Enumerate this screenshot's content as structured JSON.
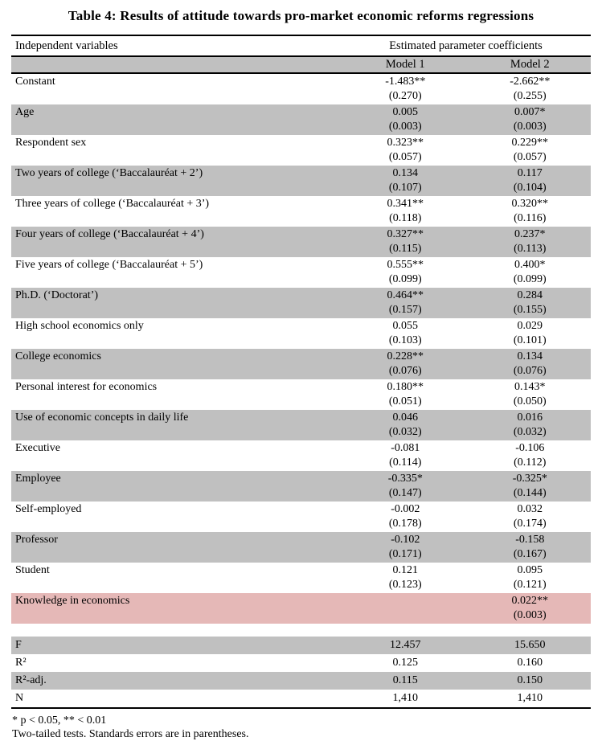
{
  "title": "Table 4: Results of attitude towards pro-market economic reforms regressions",
  "colors": {
    "row_gray": "#c0c0c0",
    "row_pink": "#e5b8b7",
    "border": "#000000",
    "text": "#000000"
  },
  "table": {
    "col1_header": "Independent variables",
    "col2_header": "Estimated parameter coefficients",
    "model_headers": {
      "model1": "Model 1",
      "model2": "Model 2"
    },
    "rows": [
      {
        "label": "Constant",
        "m1": "-1.483**",
        "m1_se": "(0.270)",
        "m2": "-2.662**",
        "m2_se": "(0.255)",
        "shade": "white"
      },
      {
        "label": "Age",
        "m1": "0.005",
        "m1_se": "(0.003)",
        "m2": "0.007*",
        "m2_se": "(0.003)",
        "shade": "gray"
      },
      {
        "label": "Respondent sex",
        "m1": "0.323**",
        "m1_se": "(0.057)",
        "m2": "0.229**",
        "m2_se": "(0.057)",
        "shade": "white"
      },
      {
        "label": "Two years of college (‘Baccalauréat + 2’)",
        "m1": "0.134",
        "m1_se": "(0.107)",
        "m2": "0.117",
        "m2_se": "(0.104)",
        "shade": "gray"
      },
      {
        "label": "Three years of college (‘Baccalauréat + 3’)",
        "m1": "0.341**",
        "m1_se": "(0.118)",
        "m2": "0.320**",
        "m2_se": "(0.116)",
        "shade": "white"
      },
      {
        "label": "Four years of college (‘Baccalauréat + 4’)",
        "m1": "0.327**",
        "m1_se": "(0.115)",
        "m2": "0.237*",
        "m2_se": "(0.113)",
        "shade": "gray"
      },
      {
        "label": "Five years of college (‘Baccalauréat + 5’)",
        "m1": "0.555**",
        "m1_se": "(0.099)",
        "m2": "0.400*",
        "m2_se": "(0.099)",
        "shade": "white"
      },
      {
        "label": "Ph.D. (‘Doctorat’)",
        "m1": "0.464**",
        "m1_se": "(0.157)",
        "m2": "0.284",
        "m2_se": "(0.155)",
        "shade": "gray"
      },
      {
        "label": "High school economics only",
        "m1": "0.055",
        "m1_se": "(0.103)",
        "m2": "0.029",
        "m2_se": "(0.101)",
        "shade": "white"
      },
      {
        "label": "College economics",
        "m1": "0.228**",
        "m1_se": "(0.076)",
        "m2": "0.134",
        "m2_se": "(0.076)",
        "shade": "gray"
      },
      {
        "label": "Personal interest for economics",
        "m1": "0.180**",
        "m1_se": "(0.051)",
        "m2": "0.143*",
        "m2_se": "(0.050)",
        "shade": "white"
      },
      {
        "label": "Use of economic concepts in daily life",
        "m1": "0.046",
        "m1_se": "(0.032)",
        "m2": "0.016",
        "m2_se": "(0.032)",
        "shade": "gray"
      },
      {
        "label": "Executive",
        "m1": "-0.081",
        "m1_se": "(0.114)",
        "m2": "-0.106",
        "m2_se": "(0.112)",
        "shade": "white"
      },
      {
        "label": "Employee",
        "m1": "-0.335*",
        "m1_se": "(0.147)",
        "m2": "-0.325*",
        "m2_se": "(0.144)",
        "shade": "gray"
      },
      {
        "label": "Self-employed",
        "m1": "-0.002",
        "m1_se": "(0.178)",
        "m2": "0.032",
        "m2_se": "(0.174)",
        "shade": "white"
      },
      {
        "label": "Professor",
        "m1": "-0.102",
        "m1_se": "(0.171)",
        "m2": "-0.158",
        "m2_se": "(0.167)",
        "shade": "gray"
      },
      {
        "label": "Student",
        "m1": "0.121",
        "m1_se": "(0.123)",
        "m2": "0.095",
        "m2_se": "(0.121)",
        "shade": "white"
      },
      {
        "label": "Knowledge in economics",
        "m1": "",
        "m1_se": "",
        "m2": "0.022**",
        "m2_se": "(0.003)",
        "shade": "pink"
      }
    ],
    "summary_rows": [
      {
        "label": "F",
        "m1": "12.457",
        "m2": "15.650",
        "shade": "gray"
      },
      {
        "label": "R²",
        "m1": "0.125",
        "m2": "0.160",
        "shade": "white"
      },
      {
        "label": "R²-adj.",
        "m1": "0.115",
        "m2": "0.150",
        "shade": "gray"
      },
      {
        "label": "N",
        "m1": "1,410",
        "m2": "1,410",
        "shade": "white"
      }
    ],
    "footnotes": [
      "* p < 0.05, ** < 0.01",
      "Two-tailed tests. Standards errors are in parentheses."
    ]
  }
}
